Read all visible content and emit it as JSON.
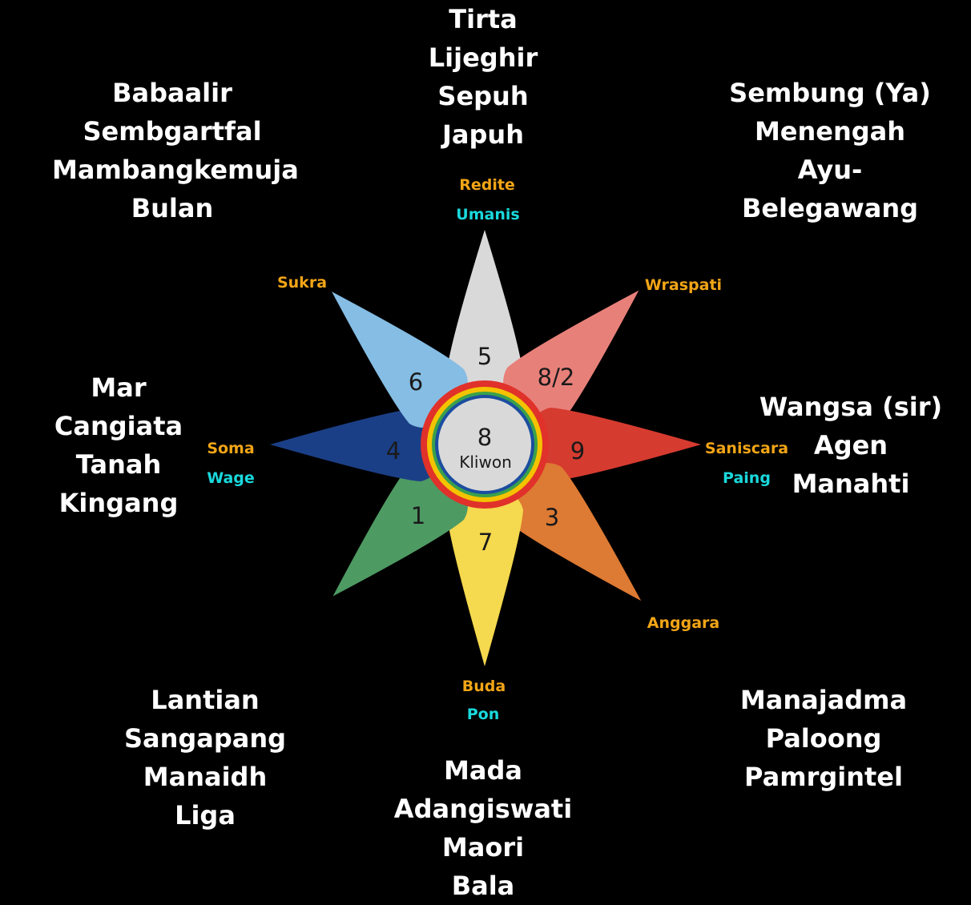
{
  "center": {
    "number": "8",
    "name": "Kliwon",
    "fill": "#d9d9d9",
    "ring_colors": [
      "#e0312a",
      "#f4c300",
      "#3aa14a",
      "#1b4da0"
    ]
  },
  "petals": [
    {
      "id": "n",
      "number": "5",
      "color": "#d9d9d9",
      "day": "Redite",
      "pasaran": "Umanis",
      "words": [
        "Tirta",
        "Lijeghir",
        "Sepuh",
        "Japuh"
      ]
    },
    {
      "id": "ne",
      "number": "8/2",
      "color": "#e8807a",
      "day": "Wraspati",
      "pasaran": "",
      "words": [
        "Sembung (Ya)",
        "Menengah",
        "Ayu-",
        "Belegawang"
      ]
    },
    {
      "id": "e",
      "number": "9",
      "color": "#d63b2f",
      "day": "Saniscara",
      "pasaran": "Paing",
      "words": [
        "Wangsa (sir)",
        "Agen",
        "Manahti"
      ]
    },
    {
      "id": "se",
      "number": "3",
      "color": "#dd7a33",
      "day": "Anggara",
      "pasaran": "",
      "words": [
        "Manajadma",
        "Paloong",
        "Pamrgintel"
      ]
    },
    {
      "id": "s",
      "number": "7",
      "color": "#f5d94e",
      "day": "Buda",
      "pasaran": "Pon",
      "words": [
        "Mada",
        "Adangiswati",
        "Maori",
        "Bala"
      ]
    },
    {
      "id": "sw",
      "number": "1",
      "color": "#4e9a63",
      "day": "",
      "pasaran": "",
      "words": [
        "Lantian",
        "Sangapang",
        "Manaidh",
        "Liga"
      ]
    },
    {
      "id": "w",
      "number": "4",
      "color": "#1b3f86",
      "day": "Soma",
      "pasaran": "Wage",
      "words": [
        "Mar",
        "Cangiata",
        "Tanah",
        "Kingang"
      ]
    },
    {
      "id": "nw",
      "number": "6",
      "color": "#85bde4",
      "day": "Sukra",
      "pasaran": "",
      "words": [
        "Babaalir",
        "Sembgartfal",
        "Mambangkemuja",
        "Bulan"
      ]
    }
  ]
}
